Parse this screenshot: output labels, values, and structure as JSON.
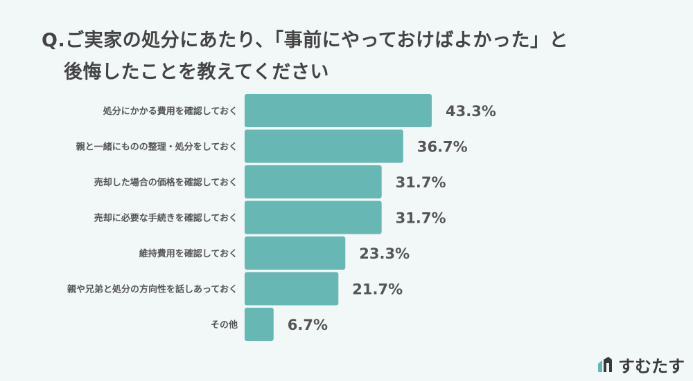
{
  "title": {
    "line1": "Q.ご実家の処分にあたり、「事前にやっておけばよかった」と",
    "line2": "後悔したことを教えてください"
  },
  "brand": {
    "name": "すむたす",
    "icon": "house-logo-icon"
  },
  "colors": {
    "bar": "#67b8b5",
    "background": "#f2f7f8"
  },
  "chart_data": {
    "type": "bar",
    "orientation": "horizontal",
    "categories": [
      "処分にかかる費用を確認しておく",
      "親と一緒にものの整理・処分をしておく",
      "売却した場合の価格を確認しておく",
      "売却に必要な手続きを確認しておく",
      "維持費用を確認しておく",
      "親や兄弟と処分の方向性を話しあっておく",
      "その他"
    ],
    "values": [
      43.3,
      36.7,
      31.7,
      31.7,
      23.3,
      21.7,
      6.7
    ],
    "value_labels": [
      "43.3%",
      "36.7%",
      "31.7%",
      "31.7%",
      "23.3%",
      "21.7%",
      "6.7%"
    ],
    "unit": "%",
    "xlim": [
      0,
      43.3
    ],
    "grid": false,
    "legend": "none"
  }
}
